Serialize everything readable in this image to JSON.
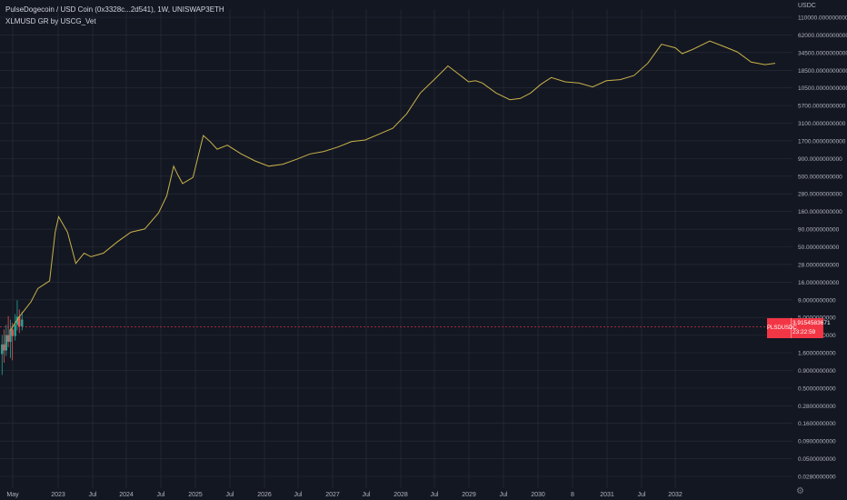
{
  "legend": {
    "line1": "PulseDogecoin / USD Coin (0x3328c...2d541), 1W, UNISWAP3ETH",
    "line2": "XLMUSD GR by USCG_Vet"
  },
  "price_tag": {
    "symbol": "PLSDUSDC",
    "value": "3.9154583671",
    "countdown": "23:22:59"
  },
  "colors": {
    "background": "#131722",
    "grid": "#2a2e39",
    "line": "#c9b24a",
    "up": "#26a69a",
    "down": "#ef5350",
    "text": "#b2b5be"
  },
  "chart_data": {
    "type": "line",
    "title": "PulseDogecoin / USD Coin (0x3328c...2d541), 1W, UNISWAP3ETH",
    "ylabel": "USDC",
    "yscale": "log",
    "grid": true,
    "x_tick_labels": [
      "May",
      "2023",
      "Jul",
      "2024",
      "Jul",
      "2025",
      "Jul",
      "2026",
      "Jul",
      "2027",
      "Jul",
      "2028",
      "Jul",
      "2029",
      "Jul",
      "2030",
      "8",
      "2031",
      "Jul",
      "2032"
    ],
    "y_tick_labels": [
      "110000.0000000000",
      "62000.0000000000",
      "34500.0000000000",
      "18500.0000000000",
      "10500.0000000000",
      "5700.0000000000",
      "3100.0000000000",
      "1700.0000000000",
      "900.0000000000",
      "500.0000000000",
      "280.0000000000",
      "160.0000000000",
      "90.0000000000",
      "50.0000000000",
      "28.0000000000",
      "16.0000000000",
      "9.0000000000",
      "5.0000000000",
      "2.8000000000",
      "1.6000000000",
      "0.9000000000",
      "0.5000000000",
      "0.2800000000",
      "0.1600000000",
      "0.0900000000",
      "0.0500000000",
      "0.0280000000"
    ],
    "ylim": [
      0.025,
      120000
    ],
    "xlim": [
      2022.3,
      2033.8
    ],
    "series": [
      {
        "x": [
          2022.45,
          2022.58,
          2022.75,
          2022.85,
          2023.02,
          2023.1,
          2023.15,
          2023.28,
          2023.4,
          2023.52,
          2023.62,
          2023.8,
          2024.0,
          2024.2,
          2024.4,
          2024.6,
          2024.72,
          2024.82,
          2024.88,
          2024.95,
          2025.1,
          2025.25,
          2025.35,
          2025.45,
          2025.6,
          2025.8,
          2026.0,
          2026.2,
          2026.4,
          2026.6,
          2026.8,
          2027.0,
          2027.2,
          2027.4,
          2027.6,
          2027.8,
          2028.0,
          2028.2,
          2028.4,
          2028.6,
          2028.8,
          2028.95,
          2029.1,
          2029.2,
          2029.3,
          2029.5,
          2029.7,
          2029.85,
          2030.0,
          2030.15,
          2030.3,
          2030.5,
          2030.7,
          2030.9,
          2031.1,
          2031.3,
          2031.5,
          2031.7,
          2031.9,
          2032.1,
          2032.2,
          2032.35,
          2032.6,
          2032.8,
          2033.0,
          2033.2,
          2033.4,
          2033.55
        ],
        "y": [
          3.5,
          5.5,
          9,
          14,
          18,
          90,
          150,
          90,
          32,
          45,
          40,
          45,
          65,
          90,
          100,
          170,
          300,
          800,
          600,
          450,
          550,
          2200,
          1800,
          1400,
          1600,
          1200,
          950,
          800,
          850,
          1000,
          1200,
          1300,
          1500,
          1800,
          1900,
          2300,
          2800,
          4500,
          9000,
          14000,
          22000,
          17000,
          13000,
          13500,
          12500,
          9000,
          7200,
          7500,
          9000,
          12000,
          15000,
          13000,
          12500,
          11000,
          13500,
          14000,
          16000,
          24000,
          45000,
          40000,
          33000,
          38000,
          50000,
          42000,
          35000,
          25000,
          23000,
          24000
        ]
      }
    ],
    "candles": [
      {
        "x": 2022.33,
        "o": 1.6,
        "c": 2.2,
        "h": 3.0,
        "l": 0.8,
        "dir": "up"
      },
      {
        "x": 2022.36,
        "o": 2.2,
        "c": 1.8,
        "h": 3.6,
        "l": 1.2,
        "dir": "down"
      },
      {
        "x": 2022.39,
        "o": 1.8,
        "c": 3.0,
        "h": 4.2,
        "l": 1.5,
        "dir": "up"
      },
      {
        "x": 2022.42,
        "o": 3.0,
        "c": 2.4,
        "h": 5.6,
        "l": 2.0,
        "dir": "down"
      },
      {
        "x": 2022.45,
        "o": 2.4,
        "c": 3.6,
        "h": 5.0,
        "l": 1.4,
        "dir": "up"
      },
      {
        "x": 2022.48,
        "o": 3.6,
        "c": 2.9,
        "h": 4.5,
        "l": 1.3,
        "dir": "down"
      },
      {
        "x": 2022.52,
        "o": 2.9,
        "c": 4.2,
        "h": 6.0,
        "l": 2.5,
        "dir": "up"
      },
      {
        "x": 2022.55,
        "o": 4.2,
        "c": 5.5,
        "h": 9.5,
        "l": 3.5,
        "dir": "up"
      },
      {
        "x": 2022.58,
        "o": 5.5,
        "c": 4.0,
        "h": 7.0,
        "l": 3.2,
        "dir": "down"
      },
      {
        "x": 2022.62,
        "o": 4.0,
        "c": 5.0,
        "h": 6.5,
        "l": 3.5,
        "dir": "up"
      }
    ],
    "current_price": 3.9154583671
  }
}
